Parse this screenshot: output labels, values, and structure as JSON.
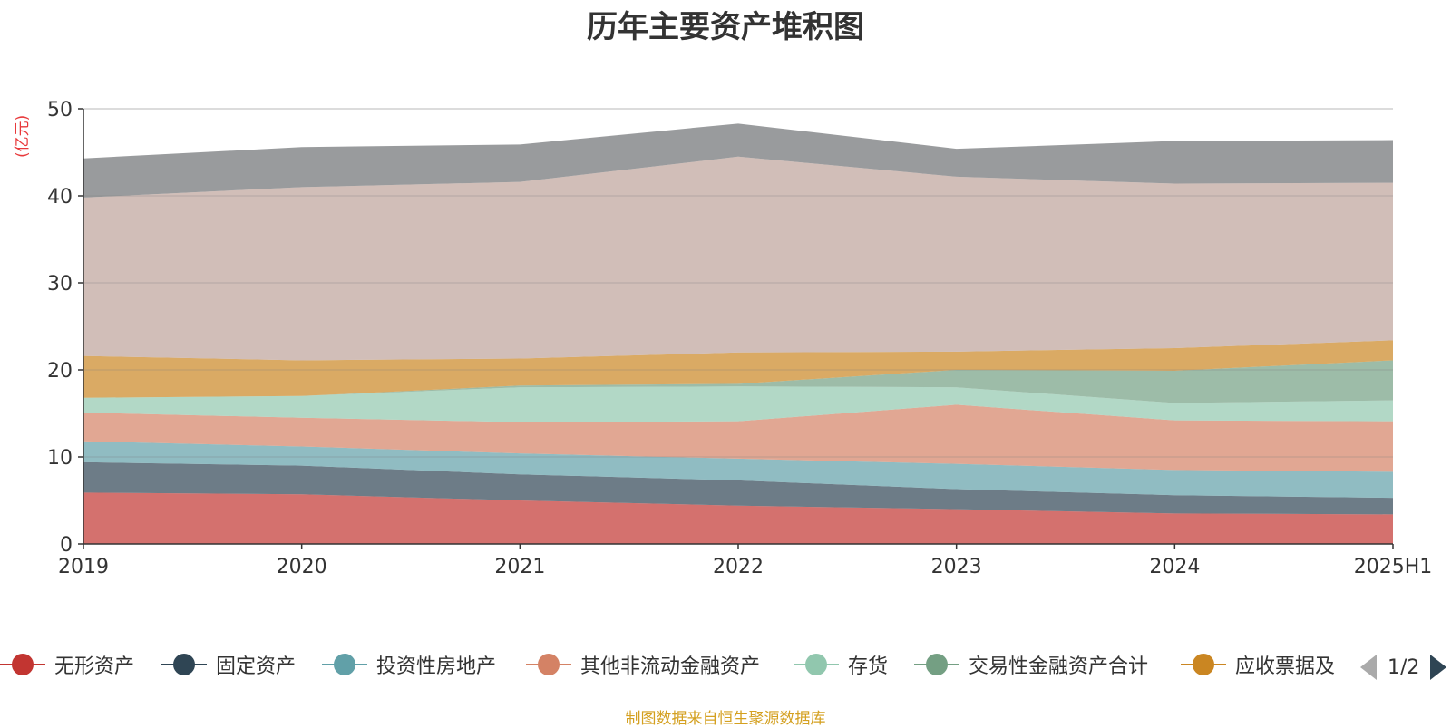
{
  "chart_data": {
    "type": "area",
    "stacked": true,
    "title": "历年主要资产堆积图",
    "ylabel": "亿元",
    "categories": [
      "2019",
      "2020",
      "2021",
      "2022",
      "2023",
      "2024",
      "2025H1"
    ],
    "ylim": [
      0,
      50
    ],
    "yticks": [
      0,
      10,
      20,
      30,
      40,
      50
    ],
    "grid": true,
    "series": [
      {
        "name": "无形资产",
        "color": "#c23531",
        "values": [
          5.9,
          5.7,
          5.0,
          4.4,
          4.0,
          3.5,
          3.4
        ]
      },
      {
        "name": "固定资产",
        "color": "#2f4554",
        "values": [
          3.5,
          3.3,
          3.0,
          2.9,
          2.3,
          2.1,
          1.9
        ]
      },
      {
        "name": "投资性房地产",
        "color": "#61a0a8",
        "values": [
          2.4,
          2.2,
          2.4,
          2.5,
          2.9,
          2.9,
          3.0
        ]
      },
      {
        "name": "其他非流动金融资产",
        "color": "#d48265",
        "values": [
          3.3,
          3.3,
          3.6,
          4.3,
          6.8,
          5.7,
          5.8
        ]
      },
      {
        "name": "存货",
        "color": "#91c7ae",
        "values": [
          1.7,
          2.5,
          4.0,
          4.0,
          2.0,
          2.0,
          2.4
        ]
      },
      {
        "name": "交易性金融资产合计",
        "color": "#749f83",
        "values": [
          0.0,
          0.0,
          0.2,
          0.3,
          2.0,
          3.7,
          4.6
        ]
      },
      {
        "name": "应收票据及",
        "color": "#ca8622",
        "values": [
          4.8,
          4.1,
          3.1,
          3.6,
          2.1,
          2.6,
          2.3
        ]
      },
      {
        "name": "",
        "color": "#bda29a",
        "values": [
          18.2,
          19.9,
          20.3,
          22.5,
          20.1,
          18.9,
          18.1
        ]
      },
      {
        "name": "",
        "color": "#6e7074",
        "values": [
          4.5,
          4.6,
          4.3,
          3.8,
          3.2,
          4.9,
          4.9
        ]
      }
    ]
  },
  "legend": {
    "page": "1/2",
    "prev_icon": "triangle-left-icon",
    "next_icon": "triangle-right-icon"
  },
  "source": "制图数据来自恒生聚源数据库"
}
